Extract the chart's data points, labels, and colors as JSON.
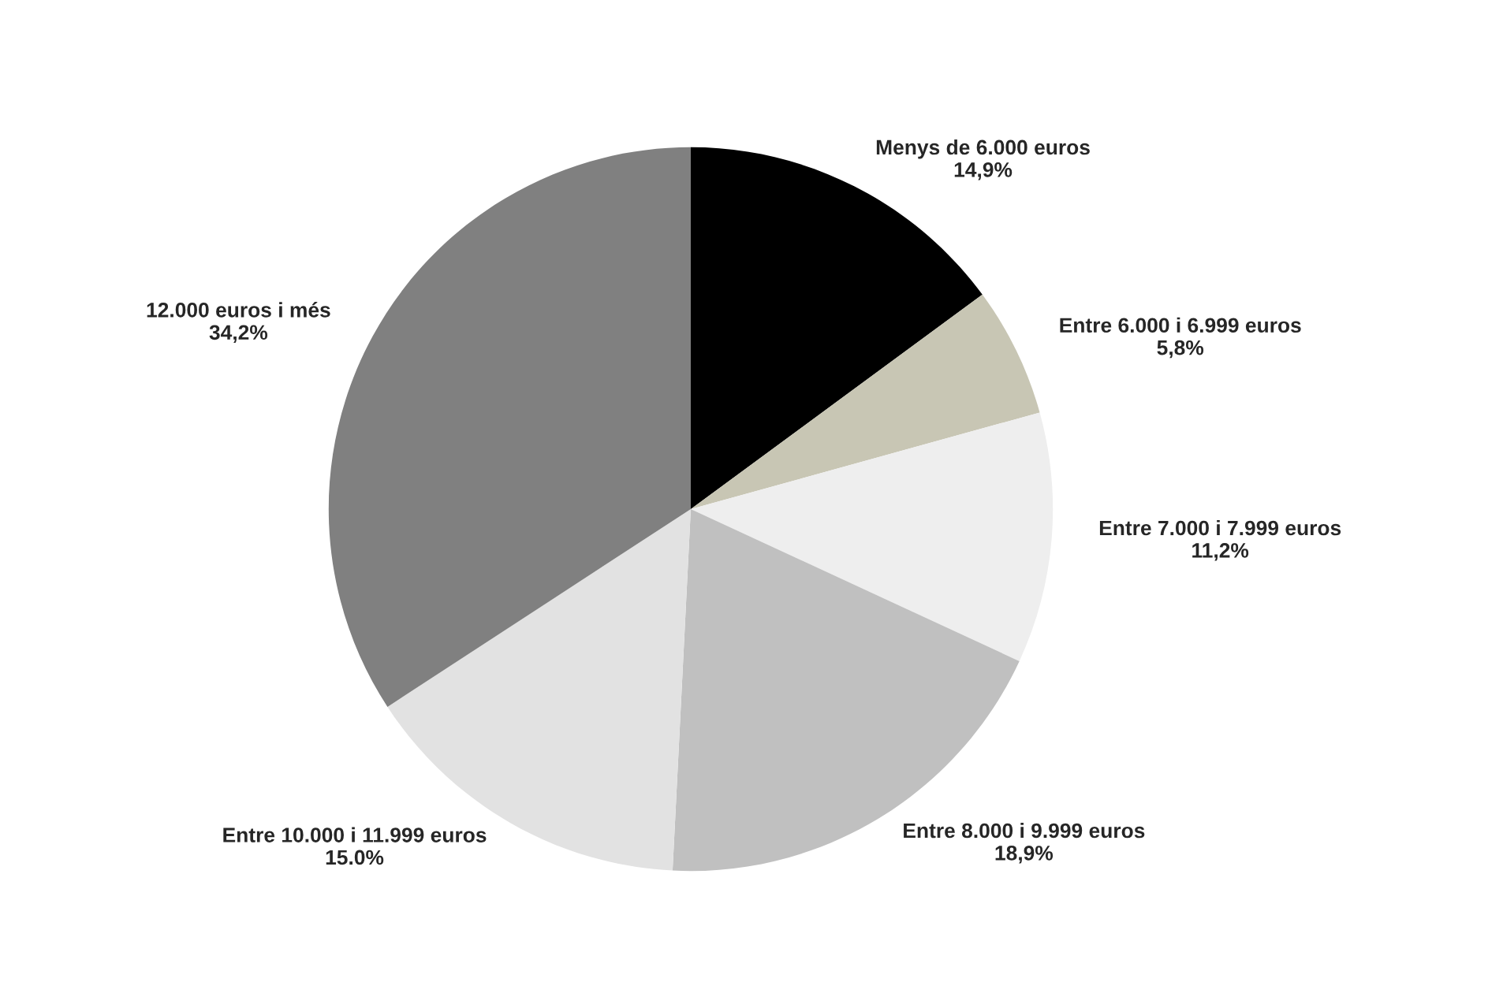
{
  "chart_data": {
    "type": "pie",
    "categories": [
      "Menys de 6.000 euros",
      "Entre 6.000 i 6.999 euros",
      "Entre 7.000 i 7.999 euros",
      "Entre 8.000 i 9.999 euros",
      "Entre 10.000 i 11.999 euros",
      "12.000 euros i més"
    ],
    "values": [
      14.9,
      5.8,
      11.2,
      18.9,
      15.0,
      34.2
    ],
    "value_labels": [
      "14,9%",
      "5,8%",
      "11,2%",
      "18,9%",
      "15.0%",
      "34,2%"
    ],
    "colors": [
      "#000000",
      "#c8c6b4",
      "#eeeeee",
      "#c0c0c0",
      "#e2e2e2",
      "#808080"
    ]
  }
}
